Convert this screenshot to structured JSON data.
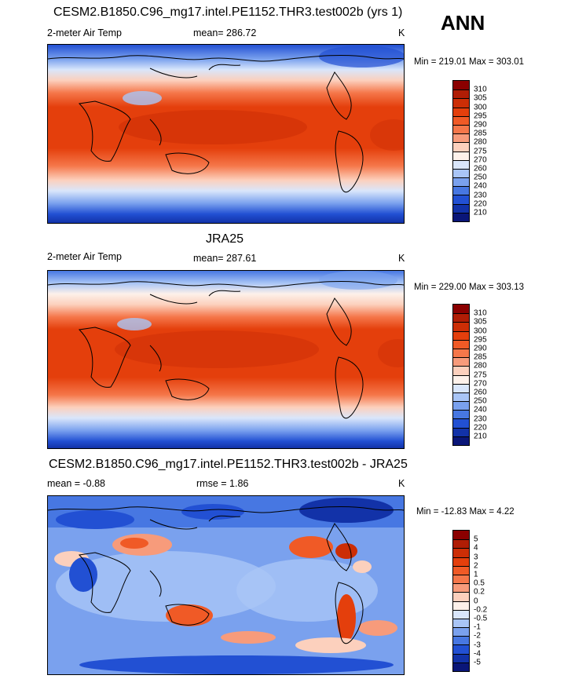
{
  "season": "ANN",
  "panels": [
    {
      "title": "CESM2.B1850.C96_mg17.intel.PE1152.THR3.test002b (yrs 1)",
      "left_label": "2-meter Air Temp",
      "center_label": "mean= 286.72",
      "units": "K",
      "minmax": "Min = 219.01 Max = 303.01",
      "colorbar": {
        "labels": [
          "310",
          "305",
          "300",
          "295",
          "290",
          "285",
          "280",
          "275",
          "270",
          "260",
          "250",
          "240",
          "230",
          "220",
          "210"
        ],
        "colors": [
          "#8b0000",
          "#b01d05",
          "#cc2e06",
          "#e43f0c",
          "#f05a26",
          "#f5774a",
          "#f79b7b",
          "#fcd0bd",
          "#fdf1ea",
          "#d9e6fb",
          "#a9c5f6",
          "#7aa1ee",
          "#4777e2",
          "#2250d3",
          "#1232a8",
          "#0a1678"
        ]
      }
    },
    {
      "title": "JRA25",
      "left_label": "2-meter Air Temp",
      "center_label": "mean= 287.61",
      "units": "K",
      "minmax": "Min = 229.00 Max = 303.13",
      "colorbar": {
        "labels": [
          "310",
          "305",
          "300",
          "295",
          "290",
          "285",
          "280",
          "275",
          "270",
          "260",
          "250",
          "240",
          "230",
          "220",
          "210"
        ],
        "colors": [
          "#8b0000",
          "#b01d05",
          "#cc2e06",
          "#e43f0c",
          "#f05a26",
          "#f5774a",
          "#f79b7b",
          "#fcd0bd",
          "#fdf1ea",
          "#d9e6fb",
          "#a9c5f6",
          "#7aa1ee",
          "#4777e2",
          "#2250d3",
          "#1232a8",
          "#0a1678"
        ]
      }
    },
    {
      "title": "CESM2.B1850.C96_mg17.intel.PE1152.THR3.test002b - JRA25",
      "left_label": "mean =  -0.88",
      "center_label": "rmse =   1.86",
      "units": "K",
      "minmax": "Min = -12.83 Max =   4.22",
      "colorbar": {
        "labels": [
          "5",
          "4",
          "3",
          "2",
          "1",
          "0.5",
          "0.2",
          "0",
          "-0.2",
          "-0.5",
          "-1",
          "-2",
          "-3",
          "-4",
          "-5"
        ],
        "colors": [
          "#8b0000",
          "#b01d05",
          "#cc2e06",
          "#e43f0c",
          "#f05a26",
          "#f5774a",
          "#f79b7b",
          "#fcd0bd",
          "#fdf1ea",
          "#d9e6fb",
          "#a9c5f6",
          "#7aa1ee",
          "#4777e2",
          "#2250d3",
          "#1232a8",
          "#0a1678"
        ]
      }
    }
  ]
}
